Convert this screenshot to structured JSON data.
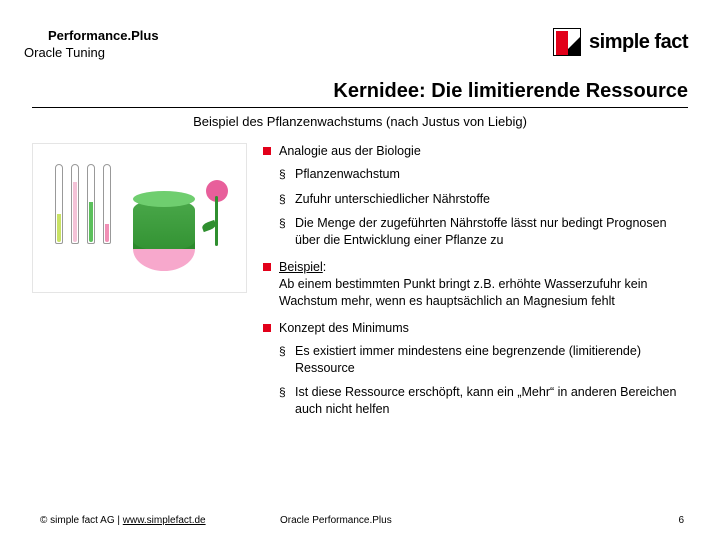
{
  "header": {
    "line1": "Performance.Plus",
    "line2": "Oracle Tuning",
    "logo_text": "simple fact",
    "logo_red": "#e2001a"
  },
  "title": "Kernidee: Die limitierende Ressource",
  "subtitle": "Beispiel des Pflanzenwachstums  (nach Justus von Liebig)",
  "bullets": {
    "b1": "Analogie aus der Biologie",
    "b1_sub": [
      "Pflanzenwachstum",
      "Zufuhr unterschiedlicher Nährstoffe",
      "Die Menge der zugeführten Nährstoffe lässt nur bedingt Prognosen über die Entwicklung einer Pflanze zu"
    ],
    "b2_label": "Beispiel",
    "b2_text": ":\nAb einem bestimmten Punkt bringt z.B. erhöhte Wasserzufuhr kein Wachstum mehr, wenn es hauptsächlich an  Magnesium fehlt",
    "b3": "Konzept des Minimums",
    "b3_sub": [
      "Es existiert immer mindestens eine begrenzende (limitierende) Ressource",
      "Ist diese Ressource erschöpft, kann ein „Mehr“ in anderen Bereichen auch nicht helfen"
    ]
  },
  "footer": {
    "copyright": "© simple fact AG  |  ",
    "link": "www.simplefact.de",
    "center": "Oracle Performance.Plus",
    "page": "6"
  },
  "diagram": {
    "tubes": [
      {
        "fill_color": "#c9e265",
        "height_pct": 35
      },
      {
        "fill_color": "#f4c2d7",
        "height_pct": 75
      },
      {
        "fill_color": "#5cc05c",
        "height_pct": 50
      },
      {
        "fill_color": "#f08fb5",
        "height_pct": 22
      }
    ],
    "barrel_color": "#4aa84a",
    "overflow_color": "#f7a8cc",
    "flower_color": "#e85f9b",
    "stem_color": "#2f8f2f",
    "border_color": "#e5e5e5"
  },
  "colors": {
    "accent": "#e2001a",
    "text": "#000000",
    "bg": "#ffffff"
  }
}
